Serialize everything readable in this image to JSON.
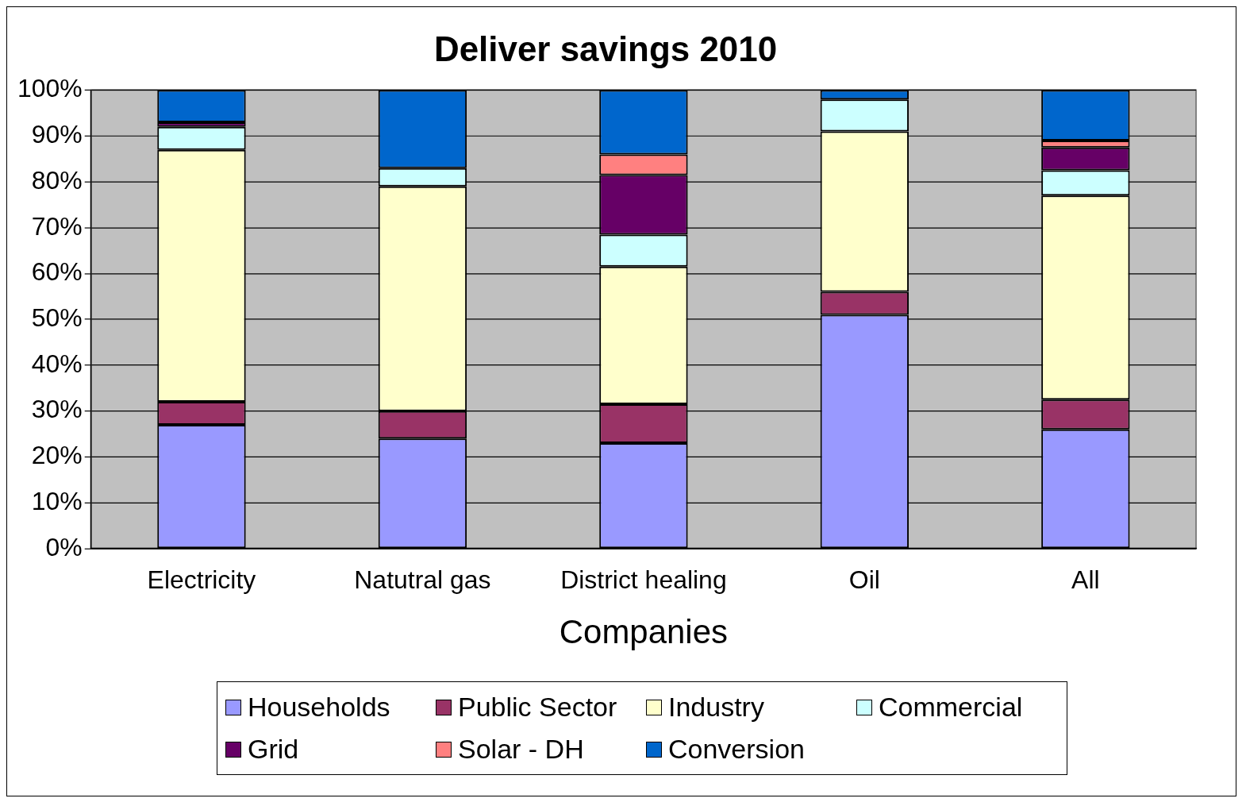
{
  "chart_data": {
    "type": "bar",
    "title": "Deliver savings 2010",
    "xlabel": "Companies",
    "stacked": true,
    "grid": "y",
    "legend": "bottom",
    "categories": [
      "Electricity",
      "Natutral gas",
      "District healing",
      "Oil",
      "All"
    ],
    "series": [
      {
        "name": "Households",
        "color": "#9999ff",
        "values": [
          27,
          24,
          23,
          51,
          26
        ]
      },
      {
        "name": "Public Sector",
        "color": "#993366",
        "values": [
          5,
          6,
          8.5,
          5,
          6.5
        ]
      },
      {
        "name": "Industry",
        "color": "#ffffcc",
        "values": [
          55,
          49,
          30,
          35,
          44.5
        ]
      },
      {
        "name": "Commercial",
        "color": "#ccffff",
        "values": [
          5,
          4,
          7,
          7,
          5.5
        ]
      },
      {
        "name": "Grid",
        "color": "#660066",
        "values": [
          1,
          0,
          13,
          0,
          5
        ]
      },
      {
        "name": "Solar - DH",
        "color": "#ff8080",
        "values": [
          0,
          0,
          4.5,
          0,
          1.5
        ]
      },
      {
        "name": "Conversion",
        "color": "#0066cc",
        "values": [
          7,
          17,
          14,
          2,
          11
        ]
      }
    ],
    "ylim": [
      0,
      100
    ],
    "yticks": [
      {
        "value": 0,
        "label": "0%"
      },
      {
        "value": 10,
        "label": "10%"
      },
      {
        "value": 20,
        "label": "20%"
      },
      {
        "value": 30,
        "label": "30%"
      },
      {
        "value": 40,
        "label": "40%"
      },
      {
        "value": 50,
        "label": "50%"
      },
      {
        "value": 60,
        "label": "60%"
      },
      {
        "value": 70,
        "label": "70%"
      },
      {
        "value": 80,
        "label": "80%"
      },
      {
        "value": 90,
        "label": "90%"
      },
      {
        "value": 100,
        "label": "100%"
      }
    ]
  }
}
